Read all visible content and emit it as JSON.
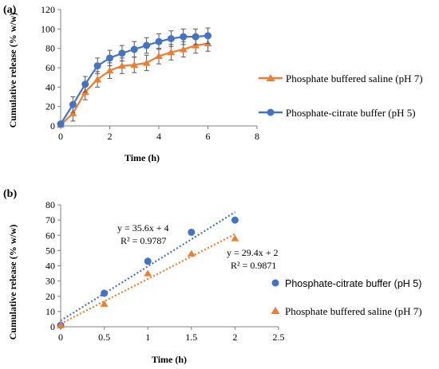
{
  "colors": {
    "orange": "#ED7D31",
    "blue": "#4472C4",
    "axis": "#7f7f7f",
    "errbar": "#595959"
  },
  "chart_data": [
    {
      "panel_label": "(a)",
      "type": "line",
      "xlabel": "Time (h)",
      "ylabel": "Cumulative release (% w/w)",
      "xlim": [
        0,
        8
      ],
      "ylim": [
        0,
        120
      ],
      "xticks": [
        "0",
        "2",
        "4",
        "6",
        "8"
      ],
      "yticks": [
        "0",
        "20",
        "40",
        "60",
        "80",
        "100",
        "120"
      ],
      "grid": false,
      "legend_position": "right",
      "series": [
        {
          "name": "Phosphate buffered saline (pH 7)",
          "color": "#ED7D31",
          "marker": "triangle",
          "x": [
            0,
            0.5,
            1,
            1.5,
            2,
            2.5,
            3,
            3.5,
            4,
            4.5,
            5,
            5.5,
            6
          ],
          "y": [
            1,
            13,
            35,
            48,
            57,
            62,
            63,
            65,
            72,
            76,
            79,
            83,
            85
          ],
          "error": [
            1,
            8,
            8,
            8,
            8,
            8,
            8,
            8,
            8,
            8,
            8,
            8,
            8
          ]
        },
        {
          "name": "Phosphate-citrate buffer (pH 5)",
          "color": "#4472C4",
          "marker": "circle",
          "x": [
            0,
            0.5,
            1,
            1.5,
            2,
            2.5,
            3,
            3.5,
            4,
            4.5,
            5,
            5.5,
            6
          ],
          "y": [
            2,
            22,
            43,
            62,
            70,
            75,
            79,
            83,
            87,
            90,
            92,
            92,
            93
          ],
          "error": [
            1,
            8,
            8,
            8,
            8,
            8,
            8,
            8,
            8,
            8,
            8,
            8,
            8
          ]
        }
      ]
    },
    {
      "panel_label": "(b)",
      "type": "scatter",
      "xlabel": "Time (h)",
      "ylabel": "Cumulative release (% w/w)",
      "xlim": [
        0,
        2.5
      ],
      "ylim": [
        0,
        80
      ],
      "xticks": [
        "0",
        "0.5",
        "1",
        "1.5",
        "2",
        "2.5"
      ],
      "yticks": [
        "0",
        "10",
        "20",
        "30",
        "40",
        "50",
        "60",
        "70",
        "80"
      ],
      "grid": false,
      "legend_position": "right",
      "series": [
        {
          "name": "Phosphate-citrate buffer (pH 5)",
          "color": "#4472C4",
          "marker": "circle",
          "x": [
            0,
            0.5,
            1,
            1.5,
            2
          ],
          "y": [
            1,
            22,
            43,
            62,
            70
          ],
          "trendline": {
            "slope": 35.6,
            "intercept": 4,
            "equation": "y = 35.6x + 4",
            "r2": "R² = 0.9787"
          }
        },
        {
          "name": "Phosphate buffered saline (pH 7)",
          "color": "#ED7D31",
          "marker": "triangle",
          "x": [
            0,
            0.5,
            1,
            1.5,
            2
          ],
          "y": [
            1,
            15,
            35,
            48,
            58
          ],
          "trendline": {
            "slope": 29.4,
            "intercept": 2,
            "equation": "y = 29.4x + 2",
            "r2": "R² = 0.9871"
          }
        }
      ]
    }
  ]
}
